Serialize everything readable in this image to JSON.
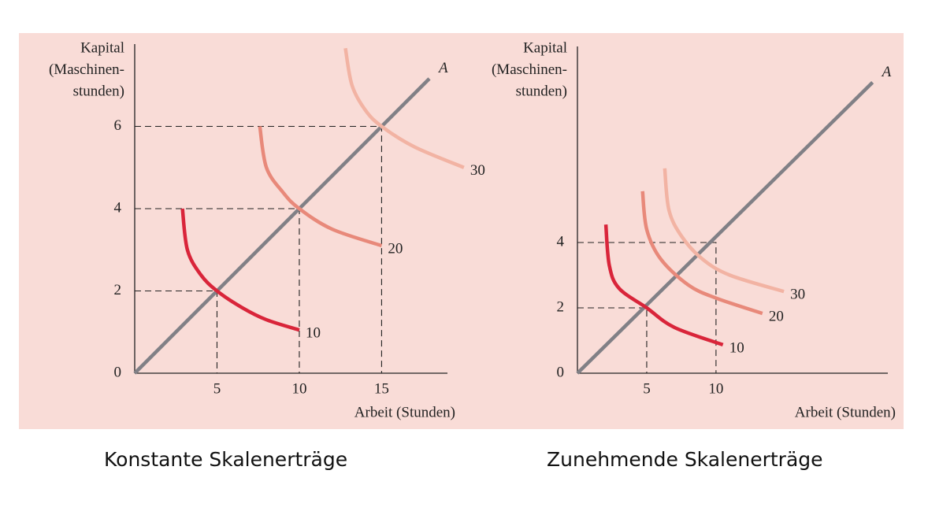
{
  "chart_data": [
    {
      "type": "isoquant",
      "caption": "Konstante Skalenerträge",
      "ylabel": [
        "Kapital",
        "(Maschinen-",
        "stunden)"
      ],
      "xlabel": "Arbeit (Stunden)",
      "xlim": [
        0,
        19
      ],
      "ylim": [
        0,
        8
      ],
      "xticks": [
        5,
        10,
        15
      ],
      "yticks": [
        0,
        2,
        4,
        6
      ],
      "ray": {
        "name": "A",
        "color": "#818086",
        "x": [
          0,
          17.9
        ],
        "y": [
          0,
          7.16
        ]
      },
      "guides": [
        [
          5,
          2
        ],
        [
          10,
          4
        ],
        [
          15,
          6
        ]
      ],
      "series": [
        {
          "name": "10",
          "color": "#d9253a",
          "x": [
            2.9,
            3.2,
            4,
            5,
            6.5,
            8,
            10
          ],
          "y": [
            4.0,
            3.0,
            2.4,
            2.0,
            1.6,
            1.3,
            1.05
          ]
        },
        {
          "name": "20",
          "color": "#e8897a",
          "x": [
            7.6,
            8.0,
            9,
            10,
            12,
            15
          ],
          "y": [
            6.0,
            5.0,
            4.4,
            4.0,
            3.5,
            3.1
          ]
        },
        {
          "name": "30",
          "color": "#f2b3a3",
          "x": [
            12.8,
            13.2,
            14,
            15,
            17,
            20
          ],
          "y": [
            7.9,
            7.0,
            6.4,
            6.0,
            5.5,
            5.0
          ]
        }
      ]
    },
    {
      "type": "isoquant",
      "caption": "Zunehmende Skalenerträge",
      "ylabel": [
        "Kapital",
        "(Maschinen-",
        "stunden)"
      ],
      "xlabel": "Arbeit (Stunden)",
      "xlim": [
        0,
        22.4
      ],
      "ylim": [
        0,
        10
      ],
      "xticks": [
        5,
        10
      ],
      "yticks": [
        0,
        2,
        4
      ],
      "ray": {
        "name": "A",
        "color": "#818086",
        "x": [
          0,
          21.3
        ],
        "y": [
          0,
          8.9
        ]
      },
      "guides": [
        [
          5,
          2
        ],
        [
          10,
          4
        ]
      ],
      "series": [
        {
          "name": "10",
          "color": "#d9253a",
          "x": [
            2.05,
            2.3,
            3,
            5,
            7,
            10.5
          ],
          "y": [
            4.55,
            3.3,
            2.6,
            2.0,
            1.4,
            0.87
          ]
        },
        {
          "name": "20",
          "color": "#e8897a",
          "x": [
            4.7,
            5,
            6,
            8,
            10,
            13.35
          ],
          "y": [
            5.57,
            4.4,
            3.5,
            2.7,
            2.3,
            1.83
          ]
        },
        {
          "name": "30",
          "color": "#f2b3a3",
          "x": [
            6.3,
            6.6,
            7.5,
            9,
            11,
            14.9
          ],
          "y": [
            6.27,
            5.0,
            4.2,
            3.5,
            3.0,
            2.5
          ]
        }
      ]
    }
  ]
}
